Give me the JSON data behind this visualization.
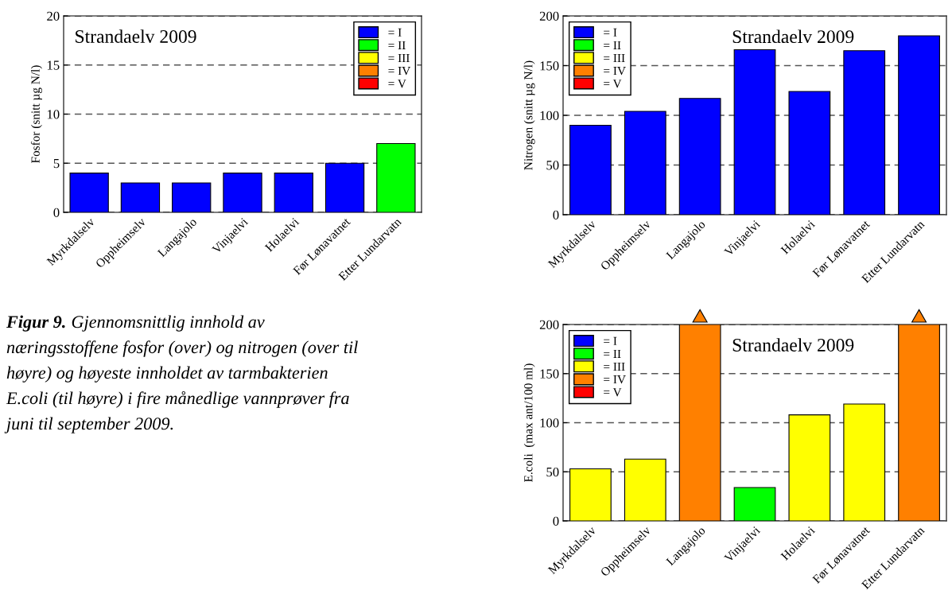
{
  "chart_data": [
    {
      "type": "bar",
      "title": "Strandaelv 2009",
      "ylabel": "Fosfor (snitt µg N/l)",
      "categories": [
        "Myrkdalselv",
        "Oppheimselv",
        "Langajolo",
        "Vinjaelvi",
        "Holaelvi",
        "Før Lønavatnet",
        "Etter Lundarvatn"
      ],
      "stacked": true,
      "series": [
        {
          "name": "= I",
          "color": "#0000ff",
          "values": [
            4,
            3,
            3,
            4,
            4,
            5,
            null
          ]
        },
        {
          "name": "= II",
          "color": "#00ff00",
          "values": [
            null,
            null,
            null,
            null,
            null,
            null,
            7
          ]
        },
        {
          "name": "= III",
          "color": "#ffff00",
          "values": [
            null,
            null,
            null,
            null,
            null,
            null,
            null
          ]
        },
        {
          "name": "= IV",
          "color": "#ff8000",
          "values": [
            null,
            null,
            null,
            null,
            null,
            null,
            null
          ]
        },
        {
          "name": "= V",
          "color": "#ff0000",
          "values": [
            null,
            null,
            null,
            null,
            null,
            null,
            null
          ]
        }
      ],
      "ylim": [
        0,
        20
      ],
      "yticks": [
        0,
        5,
        10,
        15,
        20
      ],
      "grid": "y",
      "legend": "top right",
      "annotations": [
        "Figur 9.",
        "Gjennomsnittlig innhold av\nnæringsstoffene fosfor (over) og nitrogen (over til\nhøyre) og høyeste innholdet av tarmbakterien\nE.coli (til høyre) i fire månedlige vannprøver fra\njuni til september 2009."
      ]
    },
    {
      "type": "bar",
      "title": "Strandaelv 2009",
      "ylabel": "Nitrogen (snitt µg N/l)",
      "categories": [
        "Myrkdalselv",
        "Oppheimselv",
        "Langajolo",
        "Vinjaelvi",
        "Holaelvi",
        "Før Lønavatnet",
        "Etter Lundarvatn"
      ],
      "stacked": true,
      "series": [
        {
          "name": "= I",
          "color": "#0000ff",
          "values": [
            90,
            104,
            117,
            166,
            124,
            165,
            180
          ]
        },
        {
          "name": "= II",
          "color": "#00ff00",
          "values": [
            null,
            null,
            null,
            null,
            null,
            null,
            null
          ]
        },
        {
          "name": "= III",
          "color": "#ffff00",
          "values": [
            null,
            null,
            null,
            null,
            null,
            null,
            null
          ]
        },
        {
          "name": "= IV",
          "color": "#ff8000",
          "values": [
            null,
            null,
            null,
            null,
            null,
            null,
            null
          ]
        },
        {
          "name": "= V",
          "color": "#ff0000",
          "values": [
            null,
            null,
            null,
            null,
            null,
            null,
            null
          ]
        }
      ],
      "ylim": [
        0,
        200
      ],
      "yticks": [
        0,
        50,
        100,
        150,
        200
      ],
      "grid": "y",
      "legend": "top left"
    },
    {
      "type": "bar",
      "title": "Strandaelv 2009",
      "ylabel": "E.coli  (max ant/100 ml)",
      "categories": [
        "Myrkdalselv",
        "Oppheimselv",
        "Langajolo",
        "Vinjaelvi",
        "Holaelvi",
        "Før Lønavatnet",
        "Etter Lundarvatn"
      ],
      "stacked": true,
      "series": [
        {
          "name": "= I",
          "color": "#0000ff",
          "values": [
            null,
            null,
            null,
            null,
            null,
            null,
            null
          ]
        },
        {
          "name": "= II",
          "color": "#00ff00",
          "values": [
            null,
            null,
            null,
            34,
            null,
            null,
            null
          ]
        },
        {
          "name": "= III",
          "color": "#ffff00",
          "values": [
            53,
            63,
            null,
            null,
            108,
            119,
            null
          ]
        },
        {
          "name": "= IV",
          "color": "#ff8000",
          "values": [
            null,
            null,
            200,
            null,
            null,
            null,
            200
          ]
        },
        {
          "name": "= V",
          "color": "#ff0000",
          "values": [
            null,
            null,
            null,
            null,
            null,
            null,
            null
          ]
        }
      ],
      "ylim": [
        0,
        200
      ],
      "yticks": [
        0,
        50,
        100,
        150,
        200
      ],
      "grid": "y",
      "legend": "top left"
    }
  ]
}
